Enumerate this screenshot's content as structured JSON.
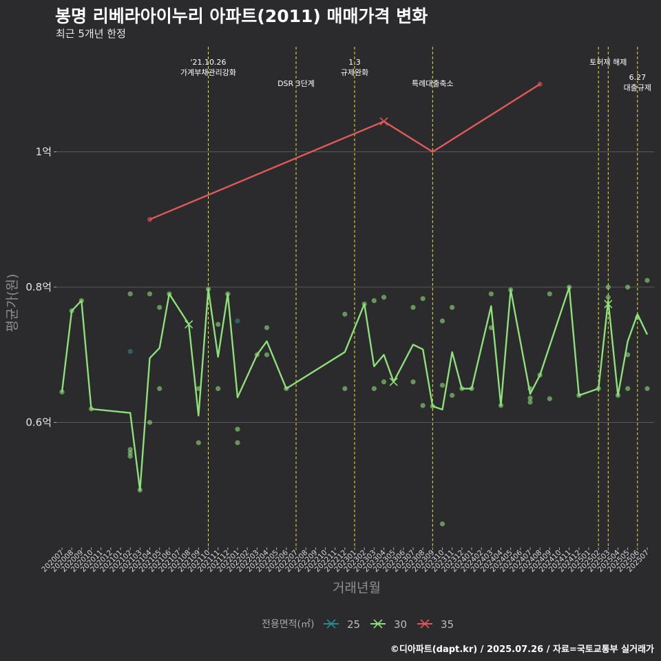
{
  "title": "봉명 리베라아이누리 아파트(2011) 매매가격 변화",
  "subtitle": "최근 5개년 한정",
  "caption": "©디아파트(dapt.kr) / 2025.07.26 / 자료=국토교통부 실거래가",
  "chart_data": {
    "type": "line",
    "xlabel": "거래년월",
    "ylabel": "평균가(원)",
    "categories": [
      "202007",
      "202008",
      "202009",
      "202010",
      "202011",
      "202012",
      "202101",
      "202102",
      "202103",
      "202104",
      "202105",
      "202106",
      "202107",
      "202108",
      "202109",
      "202110",
      "202111",
      "202112",
      "202201",
      "202202",
      "202203",
      "202204",
      "202205",
      "202206",
      "202207",
      "202208",
      "202209",
      "202210",
      "202211",
      "202212",
      "202301",
      "202302",
      "202303",
      "202304",
      "202305",
      "202306",
      "202307",
      "202308",
      "202309",
      "202310",
      "202311",
      "202312",
      "202401",
      "202402",
      "202403",
      "202404",
      "202405",
      "202406",
      "202407",
      "202408",
      "202409",
      "202410",
      "202411",
      "202412",
      "202501",
      "202502",
      "202503",
      "202504",
      "202505",
      "202506",
      "202507"
    ],
    "yticks": [
      {
        "value": 0.6,
        "label": "0.6억"
      },
      {
        "value": 0.8,
        "label": "0.8억"
      },
      {
        "value": 1.0,
        "label": "1억"
      }
    ],
    "ylim": [
      0.42,
      1.2
    ],
    "grid": true,
    "legend_title": "전용면적(㎡)",
    "legend_position": "bottom",
    "series": [
      {
        "name": "25",
        "color": "#2a8c8c",
        "line": [],
        "points": [
          [
            "202102",
            0.705
          ],
          [
            "202201",
            0.75
          ]
        ],
        "cross": []
      },
      {
        "name": "30",
        "color": "#8ee07a",
        "line": [
          [
            "202007",
            0.645
          ],
          [
            "202008",
            0.765
          ],
          [
            "202009",
            0.78
          ],
          [
            "202010",
            0.62
          ],
          [
            "202102",
            0.614
          ],
          [
            "202103",
            0.5
          ],
          [
            "202104",
            0.695
          ],
          [
            "202105",
            0.71
          ],
          [
            "202106",
            0.79
          ],
          [
            "202108",
            0.745
          ],
          [
            "202109",
            0.61
          ],
          [
            "202110",
            0.797
          ],
          [
            "202111",
            0.697
          ],
          [
            "202112",
            0.79
          ],
          [
            "202201",
            0.637
          ],
          [
            "202203",
            0.7
          ],
          [
            "202204",
            0.72
          ],
          [
            "202206",
            0.65
          ],
          [
            "202212",
            0.704
          ],
          [
            "202302",
            0.775
          ],
          [
            "202303",
            0.683
          ],
          [
            "202304",
            0.7
          ],
          [
            "202305",
            0.66
          ],
          [
            "202307",
            0.715
          ],
          [
            "202308",
            0.708
          ],
          [
            "202309",
            0.624
          ],
          [
            "202310",
            0.619
          ],
          [
            "202311",
            0.704
          ],
          [
            "202312",
            0.65
          ],
          [
            "202401",
            0.65
          ],
          [
            "202403",
            0.772
          ],
          [
            "202404",
            0.625
          ],
          [
            "202405",
            0.796
          ],
          [
            "202407",
            0.642
          ],
          [
            "202408",
            0.67
          ],
          [
            "202411",
            0.8
          ],
          [
            "202412",
            0.64
          ],
          [
            "202502",
            0.65
          ],
          [
            "202503",
            0.78
          ],
          [
            "202504",
            0.64
          ],
          [
            "202505",
            0.72
          ],
          [
            "202506",
            0.76
          ],
          [
            "202507",
            0.73
          ]
        ],
        "points": [
          [
            "202007",
            0.645
          ],
          [
            "202008",
            0.765
          ],
          [
            "202009",
            0.78
          ],
          [
            "202010",
            0.62
          ],
          [
            "202102",
            0.79
          ],
          [
            "202102",
            0.56
          ],
          [
            "202102",
            0.555
          ],
          [
            "202102",
            0.55
          ],
          [
            "202103",
            0.5
          ],
          [
            "202104",
            0.79
          ],
          [
            "202104",
            0.6
          ],
          [
            "202105",
            0.77
          ],
          [
            "202105",
            0.65
          ],
          [
            "202106",
            0.79
          ],
          [
            "202109",
            0.65
          ],
          [
            "202109",
            0.57
          ],
          [
            "202110",
            0.797
          ],
          [
            "202111",
            0.745
          ],
          [
            "202111",
            0.65
          ],
          [
            "202112",
            0.79
          ],
          [
            "202201",
            0.59
          ],
          [
            "202201",
            0.57
          ],
          [
            "202203",
            0.7
          ],
          [
            "202204",
            0.74
          ],
          [
            "202204",
            0.7
          ],
          [
            "202206",
            0.65
          ],
          [
            "202212",
            0.76
          ],
          [
            "202212",
            0.65
          ],
          [
            "202302",
            0.775
          ],
          [
            "202303",
            0.78
          ],
          [
            "202303",
            0.65
          ],
          [
            "202304",
            0.785
          ],
          [
            "202304",
            0.66
          ],
          [
            "202307",
            0.77
          ],
          [
            "202307",
            0.66
          ],
          [
            "202308",
            0.783
          ],
          [
            "202308",
            0.625
          ],
          [
            "202309",
            0.624
          ],
          [
            "202310",
            0.75
          ],
          [
            "202310",
            0.655
          ],
          [
            "202310",
            0.45
          ],
          [
            "202311",
            0.77
          ],
          [
            "202311",
            0.64
          ],
          [
            "202312",
            0.65
          ],
          [
            "202401",
            0.65
          ],
          [
            "202403",
            0.79
          ],
          [
            "202403",
            0.74
          ],
          [
            "202404",
            0.625
          ],
          [
            "202405",
            0.796
          ],
          [
            "202407",
            0.636
          ],
          [
            "202407",
            0.63
          ],
          [
            "202407",
            0.65
          ],
          [
            "202408",
            0.67
          ],
          [
            "202409",
            0.79
          ],
          [
            "202409",
            0.635
          ],
          [
            "202411",
            0.8
          ],
          [
            "202412",
            0.64
          ],
          [
            "202502",
            0.65
          ],
          [
            "202503",
            0.8
          ],
          [
            "202503",
            0.785
          ],
          [
            "202504",
            0.64
          ],
          [
            "202505",
            0.8
          ],
          [
            "202505",
            0.7
          ],
          [
            "202505",
            0.65
          ],
          [
            "202506",
            0.755
          ],
          [
            "202507",
            0.81
          ],
          [
            "202507",
            0.65
          ]
        ],
        "cross": [
          [
            "202108",
            0.745
          ],
          [
            "202305",
            0.66
          ],
          [
            "202503",
            0.775
          ]
        ]
      },
      {
        "name": "35",
        "color": "#e05a5a",
        "line": [
          [
            "202104",
            0.9
          ],
          [
            "202304",
            1.045
          ],
          [
            "202309",
            1.0
          ],
          [
            "202408",
            1.1
          ]
        ],
        "points": [
          [
            "202104",
            0.9
          ],
          [
            "202408",
            1.1
          ]
        ],
        "cross": [
          [
            "202304",
            1.045
          ]
        ]
      }
    ],
    "annotations": [
      {
        "x": "202110",
        "lines": [
          "'21.10.26",
          "가계부채관리강화"
        ],
        "pos": "high"
      },
      {
        "x": "202207",
        "lines": [
          "DSR 3단계"
        ],
        "pos": "low"
      },
      {
        "x": "202301",
        "lines": [
          "1.3",
          "규제완화"
        ],
        "pos": "high"
      },
      {
        "x": "202309",
        "lines": [
          "특례대출축소"
        ],
        "pos": "low"
      },
      {
        "x": "202502",
        "lines": [],
        "pos": "high"
      },
      {
        "x": "202503",
        "lines": [
          "토허제 해제"
        ],
        "pos": "high"
      },
      {
        "x": "202506",
        "lines": [
          "6.27",
          "대출규제"
        ],
        "pos": "mid"
      }
    ]
  }
}
